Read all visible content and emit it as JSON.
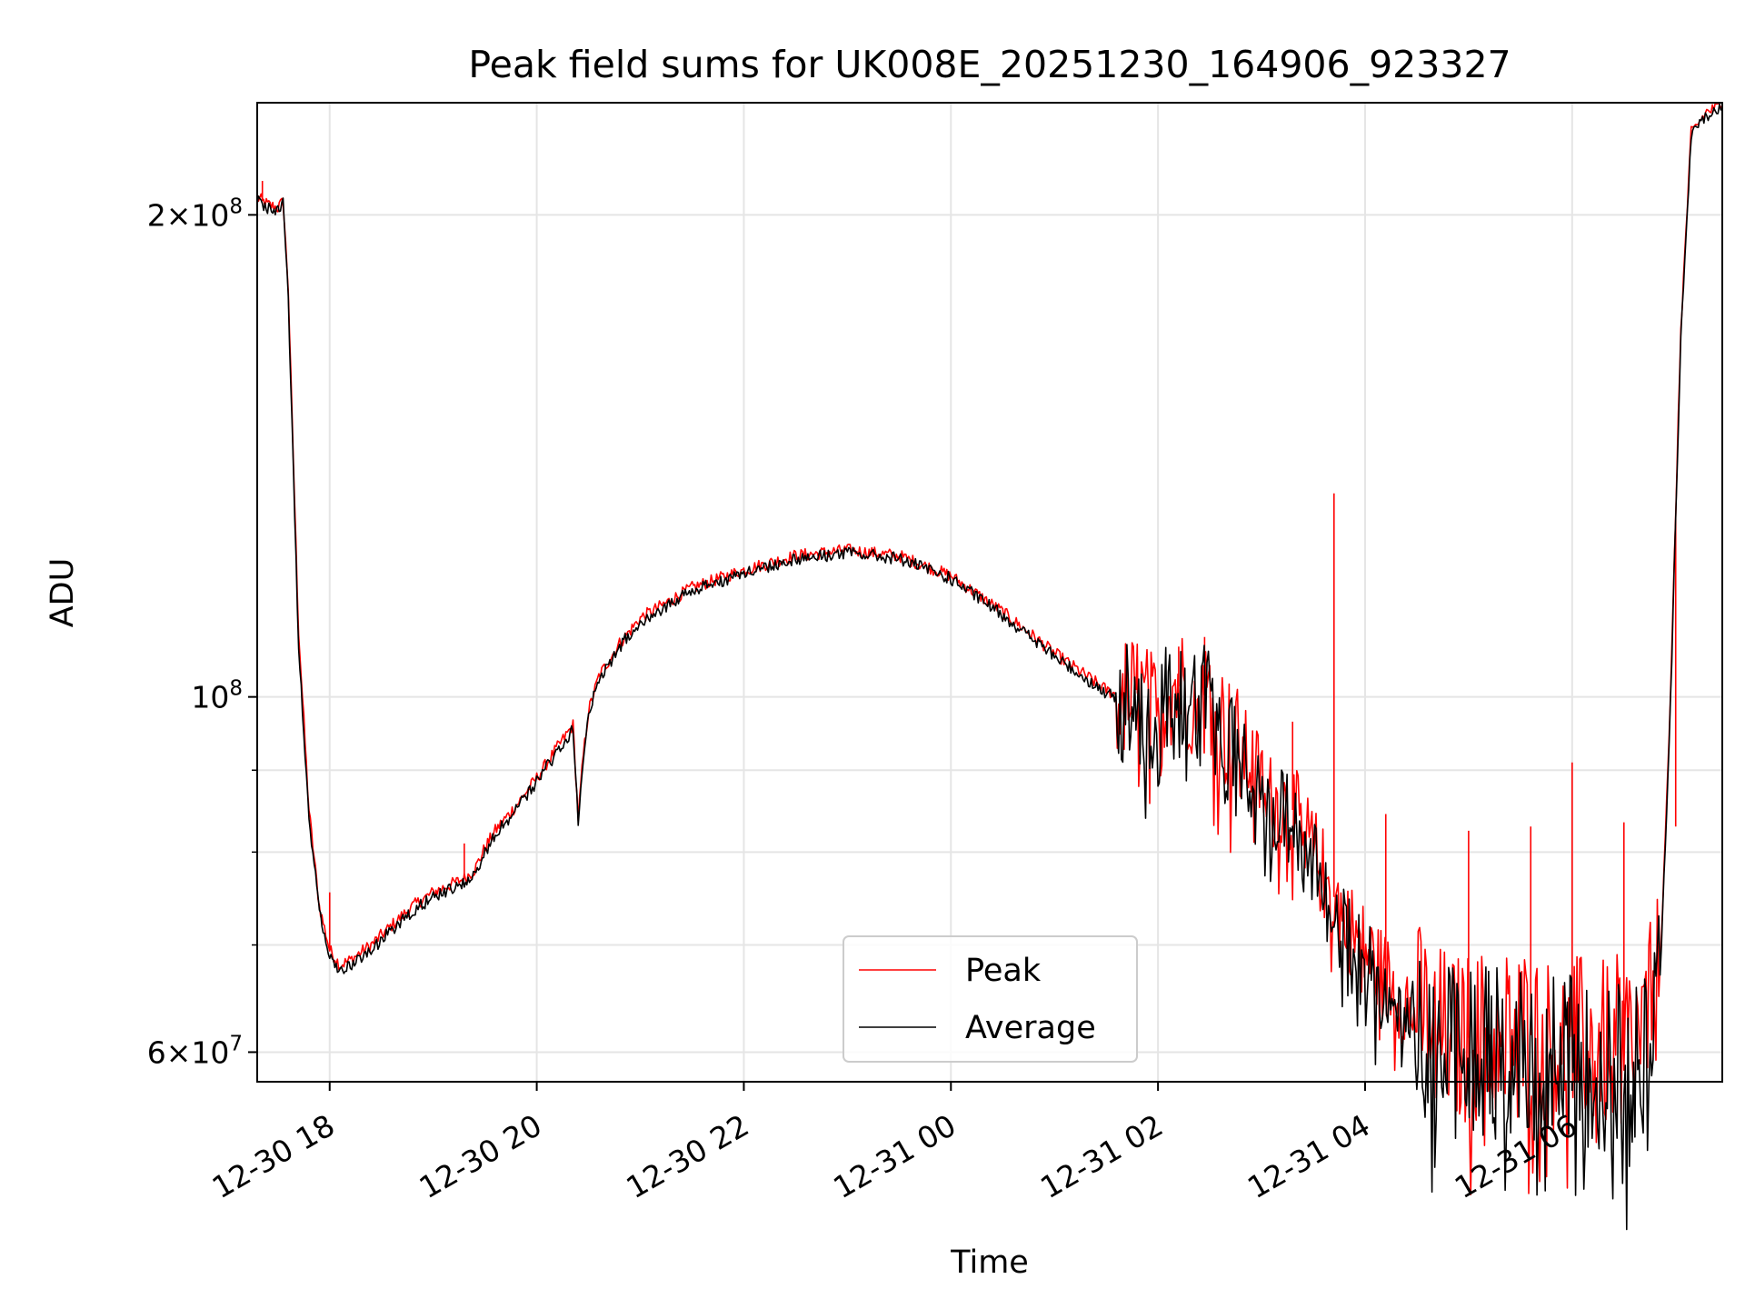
{
  "chart_data": {
    "type": "line",
    "title": "Peak field sums for UK008E_20251230_164906_923327",
    "xlabel": "Time",
    "ylabel": "ADU",
    "yscale": "log",
    "grid": true,
    "legend_position": "lower-center",
    "xlim": [
      17.3,
      31.45
    ],
    "ylim": [
      57500000,
      235000000
    ],
    "x_unit": "hours since 2025-12-30 00:00",
    "x_ticks": [
      {
        "value": 18,
        "label": "12-30 18"
      },
      {
        "value": 20,
        "label": "12-30 20"
      },
      {
        "value": 22,
        "label": "12-30 22"
      },
      {
        "value": 24,
        "label": "12-31 00"
      },
      {
        "value": 26,
        "label": "12-31 02"
      },
      {
        "value": 28,
        "label": "12-31 04"
      },
      {
        "value": 30,
        "label": "12-31 06"
      }
    ],
    "y_major_ticks": [
      {
        "value": 60000000,
        "base": "6",
        "exp": "7"
      },
      {
        "value": 100000000,
        "base": "",
        "exp": "8"
      },
      {
        "value": 200000000,
        "base": "2",
        "exp": "8"
      }
    ],
    "y_minor_ticks": [
      70000000,
      80000000,
      90000000
    ],
    "series": [
      {
        "name": "Peak",
        "color": "#ff0000",
        "x": [
          17.3,
          17.4,
          17.5,
          17.55,
          17.6,
          17.65,
          17.7,
          17.8,
          17.9,
          18.0,
          18.1,
          18.2,
          18.4,
          18.6,
          18.8,
          19.0,
          19.2,
          19.3,
          19.4,
          19.5,
          19.6,
          19.7,
          19.8,
          20.0,
          20.2,
          20.35,
          20.4,
          20.45,
          20.5,
          20.6,
          20.8,
          21.0,
          21.5,
          22.0,
          22.5,
          23.0,
          23.5,
          24.0,
          24.5,
          25.0,
          25.5,
          25.7,
          25.8,
          26.0,
          26.1,
          26.3,
          26.5,
          26.7,
          26.9,
          27.1,
          27.3,
          27.5,
          27.7,
          27.9,
          28.1,
          28.3,
          28.5,
          28.7,
          28.9,
          29.1,
          29.3,
          29.5,
          29.7,
          29.9,
          30.1,
          30.3,
          30.5,
          30.7,
          30.85,
          30.95,
          31.05,
          31.15,
          31.3,
          31.45
        ],
        "y": [
          205000000,
          203000000,
          202000000,
          204000000,
          180000000,
          140000000,
          110000000,
          85000000,
          74000000,
          69500000,
          68000000,
          68500000,
          70000000,
          72000000,
          74000000,
          75500000,
          76500000,
          77000000,
          78000000,
          80500000,
          82500000,
          84000000,
          85500000,
          89000000,
          93000000,
          96000000,
          84000000,
          92000000,
          98000000,
          103000000,
          108000000,
          112000000,
          117000000,
          120000000,
          122500000,
          123500000,
          122500000,
          119000000,
          113000000,
          106500000,
          101000000,
          99500000,
          100500000,
          96500000,
          102000000,
          101000000,
          100000000,
          94000000,
          91000000,
          86000000,
          85000000,
          80000000,
          75000000,
          71000000,
          68000000,
          65500000,
          64000000,
          62000000,
          61000000,
          61500000,
          61500000,
          62000000,
          61000000,
          60500000,
          61000000,
          60500000,
          61000000,
          61500000,
          68000000,
          100000000,
          170000000,
          225000000,
          232000000,
          234000000
        ],
        "spikes": [
          {
            "x": 17.35,
            "y": 210000000
          },
          {
            "x": 18.0,
            "y": 75500000
          },
          {
            "x": 19.3,
            "y": 81000000
          },
          {
            "x": 25.8,
            "y": 106000000
          },
          {
            "x": 26.2,
            "y": 107500000
          },
          {
            "x": 26.45,
            "y": 109000000
          },
          {
            "x": 27.3,
            "y": 96500000
          },
          {
            "x": 27.7,
            "y": 134000000
          },
          {
            "x": 28.2,
            "y": 84500000
          },
          {
            "x": 29.0,
            "y": 82500000
          },
          {
            "x": 29.6,
            "y": 83000000
          },
          {
            "x": 30.0,
            "y": 91000000
          },
          {
            "x": 30.5,
            "y": 83500000
          },
          {
            "x": 31.0,
            "y": 83000000
          }
        ]
      },
      {
        "name": "Average",
        "color": "#000000",
        "x": [
          17.3,
          17.4,
          17.5,
          17.55,
          17.6,
          17.65,
          17.7,
          17.8,
          17.9,
          18.0,
          18.1,
          18.2,
          18.4,
          18.6,
          18.8,
          19.0,
          19.2,
          19.3,
          19.4,
          19.5,
          19.6,
          19.7,
          19.8,
          20.0,
          20.2,
          20.35,
          20.4,
          20.45,
          20.5,
          20.6,
          20.8,
          21.0,
          21.5,
          22.0,
          22.5,
          23.0,
          23.5,
          24.0,
          24.5,
          25.0,
          25.5,
          25.7,
          25.8,
          26.0,
          26.1,
          26.3,
          26.5,
          26.7,
          26.9,
          27.1,
          27.3,
          27.5,
          27.7,
          27.9,
          28.1,
          28.3,
          28.5,
          28.7,
          28.9,
          29.1,
          29.3,
          29.5,
          29.7,
          29.9,
          30.1,
          30.3,
          30.5,
          30.7,
          30.85,
          30.95,
          31.05,
          31.15,
          31.3,
          31.45
        ],
        "y": [
          204000000,
          202000000,
          201000000,
          203000000,
          178000000,
          138000000,
          108000000,
          84000000,
          73500000,
          69000000,
          67500000,
          68000000,
          69500000,
          71500000,
          73500000,
          75000000,
          76000000,
          76500000,
          77500000,
          80000000,
          82000000,
          83500000,
          85000000,
          88500000,
          92500000,
          95500000,
          83500000,
          91500000,
          97500000,
          102500000,
          107500000,
          111500000,
          116500000,
          119500000,
          122000000,
          123000000,
          122000000,
          118500000,
          112500000,
          106000000,
          100500000,
          99000000,
          99500000,
          95500000,
          100500000,
          99500000,
          98500000,
          92500000,
          89500000,
          84500000,
          83500000,
          78500000,
          73500000,
          69500000,
          66500000,
          64500000,
          63000000,
          60500000,
          59800000,
          60500000,
          60000000,
          60300000,
          59500000,
          59000000,
          59300000,
          58800000,
          59000000,
          59500000,
          66500000,
          99000000,
          168000000,
          224000000,
          231000000,
          233000000
        ]
      }
    ]
  }
}
